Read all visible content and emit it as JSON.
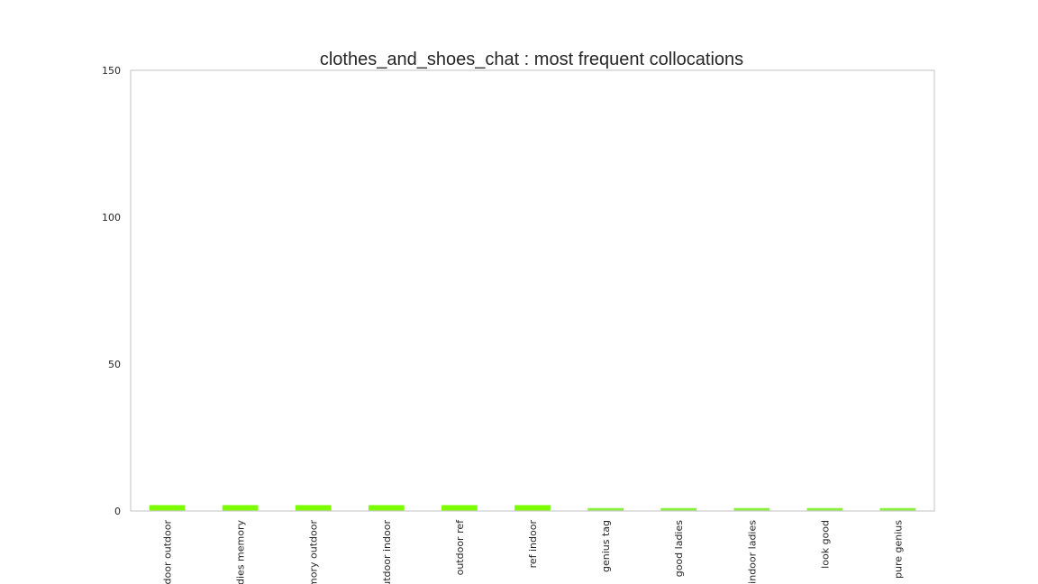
{
  "chart_data": {
    "type": "bar",
    "title": "clothes_and_shoes_chat : most frequent collocations",
    "xlabel": "",
    "ylabel": "",
    "categories": [
      "indoor outdoor",
      "ladies memory",
      "memory outdoor",
      "outdoor indoor",
      "outdoor ref",
      "ref indoor",
      "genius tag",
      "good ladies",
      "indoor ladies",
      "look good",
      "pure genius"
    ],
    "values": [
      2,
      2,
      2,
      2,
      2,
      2,
      1,
      1,
      1,
      1,
      1
    ],
    "ylim": [
      0,
      150
    ],
    "yticks": [
      0,
      50,
      100,
      150
    ],
    "ytick_labels": [
      "0",
      "50",
      "100",
      "150"
    ],
    "grid": false,
    "legend": "none",
    "colors": {
      "bar_primary": "#7cfc00",
      "bar_secondary": "#86f03c",
      "axes_edge": "#cccccc",
      "text": "#262626"
    }
  }
}
